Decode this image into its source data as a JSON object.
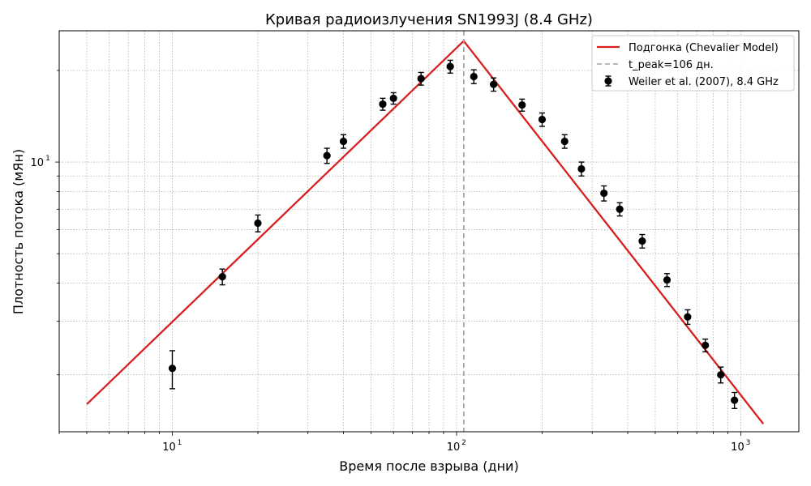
{
  "chart_data": {
    "type": "scatter",
    "title": "Кривая радиоизлучения SN1993J (8.4 GHz)",
    "xlabel": "Время после взрыва (дни)",
    "ylabel": "Плотность потока (мЯн)",
    "xscale": "log",
    "yscale": "log",
    "xlim": [
      4,
      1600
    ],
    "ylim": [
      1.3,
      27
    ],
    "grid": true,
    "legend_position": "top-right",
    "x_tick_labels": [
      {
        "value": 10,
        "base": "10",
        "exp": "1"
      },
      {
        "value": 100,
        "base": "10",
        "exp": "2"
      },
      {
        "value": 1000,
        "base": "10",
        "exp": "3"
      }
    ],
    "y_tick_labels": [
      {
        "value": 10,
        "base": "10",
        "exp": "1"
      }
    ],
    "series": [
      {
        "name": "Подгонка (Chevalier Model)",
        "kind": "line",
        "color": "#d62020",
        "x": [
          5,
          106,
          1200
        ],
        "y": [
          1.6,
          25,
          1.38
        ]
      },
      {
        "name": "t_peak=106 дн.",
        "kind": "vline",
        "color": "#a0a0a0",
        "x": 106
      },
      {
        "name": "Weiler et al. (2007), 8.4 GHz",
        "kind": "errorbar",
        "color": "#000000",
        "x": [
          10,
          15,
          20,
          35,
          40,
          55,
          60,
          75,
          95,
          115,
          135,
          170,
          200,
          240,
          275,
          330,
          375,
          450,
          550,
          650,
          750,
          850,
          950
        ],
        "y": [
          2.1,
          4.2,
          6.3,
          10.5,
          11.7,
          15.5,
          16.2,
          18.8,
          20.6,
          19.1,
          18.0,
          15.4,
          13.8,
          11.7,
          9.5,
          7.9,
          7.0,
          5.5,
          4.1,
          3.1,
          2.5,
          2.0,
          1.65
        ],
        "yerr": [
          0.3,
          0.25,
          0.4,
          0.6,
          0.6,
          0.7,
          0.7,
          0.9,
          1.0,
          1.0,
          0.9,
          0.7,
          0.7,
          0.6,
          0.5,
          0.45,
          0.35,
          0.28,
          0.2,
          0.17,
          0.12,
          0.12,
          0.1
        ]
      }
    ]
  }
}
